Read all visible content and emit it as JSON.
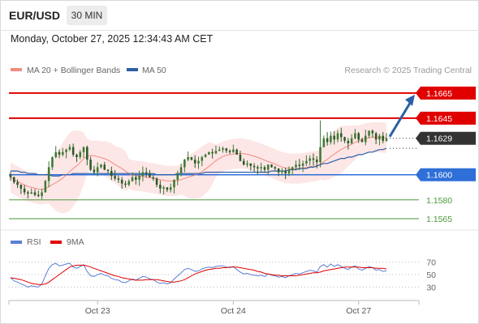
{
  "header": {
    "symbol": "EUR/USD",
    "timeframe": "30 MIN",
    "datetime": "Monday, October 27, 2025 12:34:43 AM CET"
  },
  "legend": {
    "ma20": "MA 20 + Bollinger Bands",
    "ma50": "MA 50",
    "ma20_color": "#f28b82",
    "ma50_color": "#2b5ea7",
    "credit": "Research © 2025 Trading Central"
  },
  "rsi_legend": {
    "rsi": "RSI",
    "ma9": "9MA",
    "rsi_color": "#5b7fd6",
    "ma9_color": "#e00000"
  },
  "colors": {
    "resistance": "#e00000",
    "pivot": "#2e6fd8",
    "support": "#4a9a3a",
    "last_price": "#333333",
    "arrow": "#2b5ea7",
    "bull_candle": "#3d7a35",
    "bear_candle": "#2a5a25"
  },
  "chart_data": [
    {
      "type": "candlestick",
      "ylim": [
        1.1556,
        1.1672
      ],
      "x_ticks": [
        "Oct 23",
        "Oct 24",
        "Oct 27"
      ],
      "last_price": 1.1629,
      "levels": [
        {
          "label": "1.1665",
          "value": 1.1665,
          "role": "resistance"
        },
        {
          "label": "1.1645",
          "value": 1.1645,
          "role": "resistance"
        },
        {
          "label": "1.1600",
          "value": 1.16,
          "role": "pivot"
        },
        {
          "label": "1.1580",
          "value": 1.158,
          "role": "support"
        },
        {
          "label": "1.1565",
          "value": 1.1565,
          "role": "support"
        }
      ],
      "last_price_label": "1.1629",
      "arrow": {
        "from": 1.1629,
        "to": 1.1665
      },
      "close": [
        1.1598,
        1.1594,
        1.1592,
        1.1589,
        1.1586,
        1.1585,
        1.1586,
        1.1584,
        1.1583,
        1.1586,
        1.1595,
        1.1606,
        1.1614,
        1.1618,
        1.1616,
        1.1618,
        1.162,
        1.1622,
        1.1616,
        1.1614,
        1.1618,
        1.1622,
        1.1612,
        1.1604,
        1.1602,
        1.1606,
        1.1608,
        1.1604,
        1.1603,
        1.1599,
        1.1597,
        1.1596,
        1.1593,
        1.1592,
        1.1595,
        1.1598,
        1.1596,
        1.1599,
        1.1602,
        1.1601,
        1.1598,
        1.1597,
        1.1592,
        1.1589,
        1.159,
        1.1588,
        1.159,
        1.1596,
        1.1601,
        1.1606,
        1.1612,
        1.1614,
        1.1612,
        1.1609,
        1.1611,
        1.1614,
        1.1616,
        1.1618,
        1.1617,
        1.1619,
        1.162,
        1.1621,
        1.1619,
        1.1618,
        1.162,
        1.1616,
        1.1611,
        1.1608,
        1.1609,
        1.1607,
        1.1606,
        1.1605,
        1.1606,
        1.1604,
        1.1608,
        1.1606,
        1.1605,
        1.1602,
        1.1603,
        1.1601,
        1.1604,
        1.1606,
        1.1608,
        1.1607,
        1.1609,
        1.1611,
        1.1613,
        1.1612,
        1.161,
        1.1622,
        1.1629,
        1.1626,
        1.1631,
        1.1628,
        1.1633,
        1.163,
        1.1627,
        1.1625,
        1.1629,
        1.1633,
        1.1628,
        1.1626,
        1.1631,
        1.1635,
        1.1633,
        1.1628,
        1.1631,
        1.1627,
        1.1629
      ],
      "ma50": [
        1.1603,
        1.1603,
        1.1603,
        1.1602,
        1.1602,
        1.1601,
        1.1601,
        1.1601,
        1.16,
        1.16,
        1.16,
        1.16,
        1.1599,
        1.1599,
        1.1599,
        1.16,
        1.16,
        1.16,
        1.1601,
        1.1601,
        1.1601,
        1.1601,
        1.1601,
        1.1601,
        1.1601,
        1.1601,
        1.1601,
        1.1601,
        1.1601,
        1.1601,
        1.1601,
        1.1601,
        1.1601,
        1.1601,
        1.1601,
        1.1601,
        1.1601,
        1.1601,
        1.1601,
        1.1601,
        1.1601,
        1.1601,
        1.16,
        1.16,
        1.16,
        1.16,
        1.16,
        1.16,
        1.1601,
        1.1601,
        1.1601,
        1.1601,
        1.1601,
        1.1601,
        1.1601,
        1.1601,
        1.1602,
        1.1602,
        1.1602,
        1.1602,
        1.1602,
        1.1602,
        1.1602,
        1.1602,
        1.1602,
        1.1602,
        1.1602,
        1.1602,
        1.1602,
        1.1602,
        1.1602,
        1.1602,
        1.1602,
        1.1602,
        1.1602,
        1.1603,
        1.1603,
        1.1603,
        1.1603,
        1.1603,
        1.1604,
        1.1604,
        1.1604,
        1.1605,
        1.1605,
        1.1605,
        1.1606,
        1.1606,
        1.1607,
        1.1608,
        1.1609,
        1.1609,
        1.161,
        1.1611,
        1.1612,
        1.1613,
        1.1613,
        1.1614,
        1.1614,
        1.1615,
        1.1616,
        1.1616,
        1.1617,
        1.1618,
        1.1618,
        1.1619,
        1.162,
        1.162,
        1.1621
      ]
    },
    {
      "type": "line",
      "name": "RSI",
      "ylim": [
        15,
        85
      ],
      "y_ticks": [
        "70",
        "50",
        "30"
      ],
      "levels": [
        70,
        50,
        30
      ],
      "rsi": [
        45,
        40,
        38,
        35,
        33,
        30,
        32,
        31,
        30,
        35,
        48,
        60,
        66,
        68,
        64,
        65,
        67,
        68,
        62,
        60,
        63,
        66,
        55,
        48,
        47,
        50,
        52,
        49,
        48,
        44,
        42,
        41,
        38,
        37,
        40,
        43,
        41,
        44,
        47,
        46,
        43,
        42,
        38,
        36,
        37,
        35,
        37,
        43,
        48,
        53,
        58,
        60,
        58,
        55,
        56,
        59,
        61,
        62,
        61,
        63,
        64,
        64,
        62,
        61,
        63,
        58,
        54,
        51,
        52,
        50,
        49,
        48,
        49,
        47,
        51,
        49,
        48,
        46,
        47,
        45,
        48,
        50,
        52,
        51,
        53,
        55,
        57,
        56,
        54,
        63,
        66,
        62,
        67,
        63,
        66,
        63,
        60,
        58,
        62,
        64,
        59,
        57,
        60,
        63,
        61,
        57,
        58,
        55,
        56
      ],
      "ma9": [
        45,
        44,
        43,
        42,
        40,
        38,
        36,
        35,
        34,
        34,
        35,
        38,
        42,
        46,
        50,
        54,
        58,
        62,
        64,
        65,
        65,
        65,
        64,
        62,
        60,
        58,
        56,
        54,
        52,
        50,
        48,
        47,
        45,
        44,
        43,
        42,
        41,
        41,
        41,
        42,
        42,
        42,
        42,
        41,
        40,
        39,
        38,
        38,
        39,
        40,
        42,
        45,
        48,
        51,
        53,
        55,
        57,
        58,
        59,
        60,
        60,
        61,
        61,
        62,
        62,
        62,
        61,
        60,
        59,
        58,
        57,
        55,
        54,
        52,
        51,
        50,
        49,
        49,
        48,
        48,
        48,
        48,
        48,
        49,
        50,
        51,
        52,
        53,
        53,
        54,
        56,
        57,
        58,
        59,
        60,
        61,
        62,
        62,
        62,
        62,
        62,
        61,
        61,
        61,
        61,
        60,
        60,
        60,
        59
      ]
    }
  ]
}
